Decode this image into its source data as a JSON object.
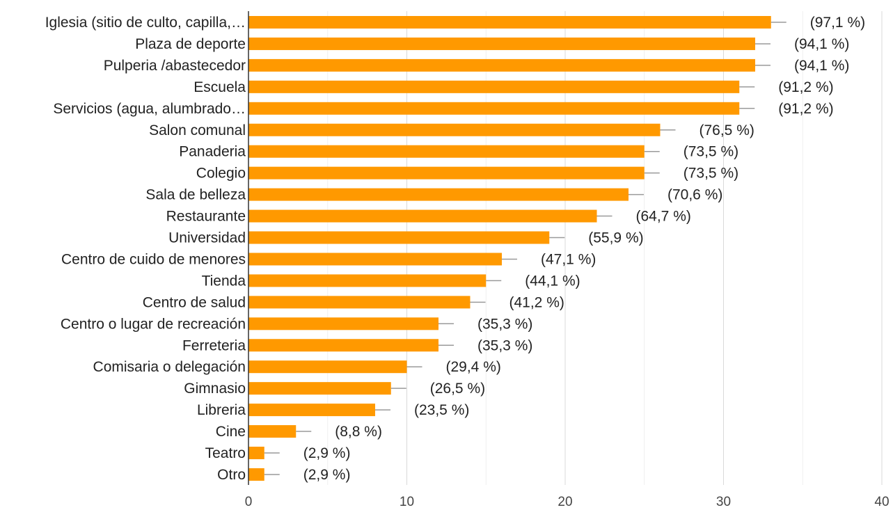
{
  "chart_data": {
    "type": "bar",
    "orientation": "horizontal",
    "categories": [
      "Iglesia (sitio de culto, capilla,…",
      "Plaza de deporte",
      "Pulperia /abastecedor",
      "Escuela",
      "Servicios (agua, alumbrado…",
      "Salon comunal",
      "Panaderia",
      "Colegio",
      "Sala de belleza",
      "Restaurante",
      "Universidad",
      "Centro de cuido de menores",
      "Tienda",
      "Centro de salud",
      "Centro o lugar de recreación",
      "Ferreteria",
      "Comisaria o delegación",
      "Gimnasio",
      "Libreria",
      "Cine",
      "Teatro",
      "Otro"
    ],
    "values": [
      33,
      32,
      32,
      31,
      31,
      26,
      25,
      25,
      24,
      22,
      19,
      16,
      15,
      14,
      12,
      12,
      10,
      9,
      8,
      3,
      1,
      1
    ],
    "data_labels": [
      "(97,1 %)",
      "(94,1 %)",
      "(94,1 %)",
      "(91,2 %)",
      "(91,2 %)",
      "(76,5 %)",
      "(73,5 %)",
      "(73,5 %)",
      "(70,6 %)",
      "(64,7 %)",
      "(55,9 %)",
      "(47,1 %)",
      "(44,1 %)",
      "(41,2 %)",
      "(35,3 %)",
      "(35,3 %)",
      "(29,4 %)",
      "(26,5 %)",
      "(23,5 %)",
      "(8,8 %)",
      "(2,9 %)",
      "(2,9 %)"
    ],
    "xlim": [
      0,
      40
    ],
    "x_ticks": [
      "0",
      "10",
      "20",
      "30",
      "40"
    ],
    "grid": true,
    "bar_color": "#ff9900"
  }
}
